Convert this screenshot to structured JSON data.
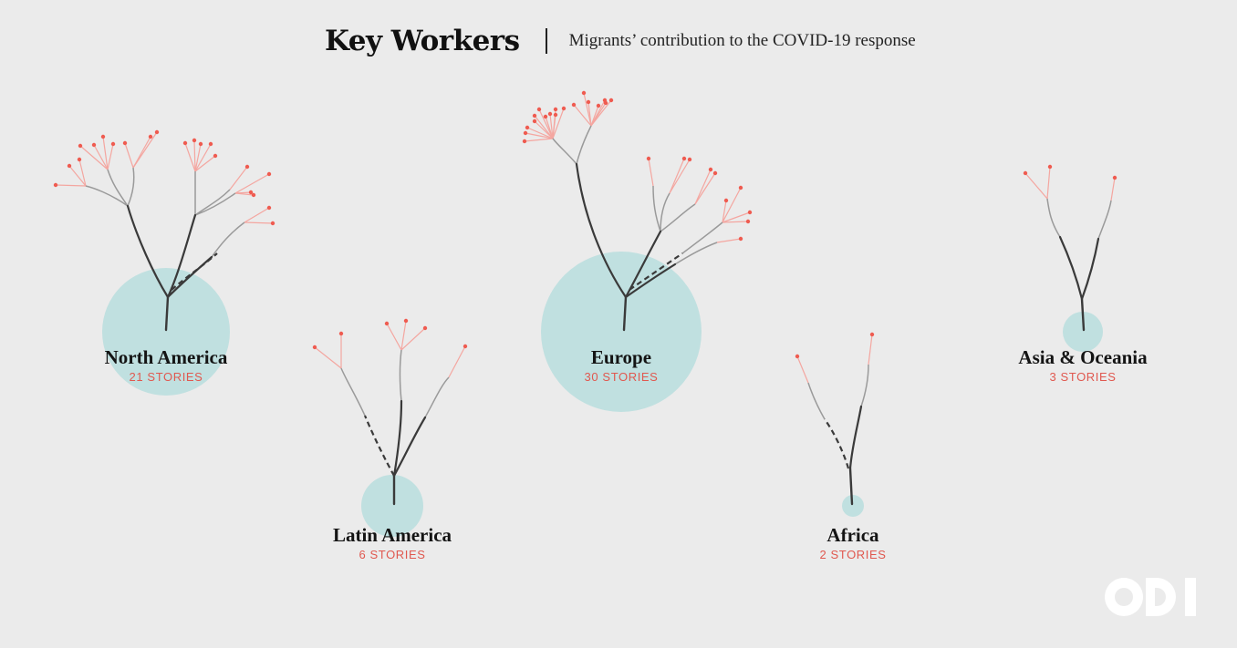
{
  "header": {
    "title": "Key Workers",
    "subtitle": "Migrants’ contribution to the COVID-19 response"
  },
  "regions": [
    {
      "name": "North America",
      "stories_label": "21 STORIES",
      "stories": 21
    },
    {
      "name": "Latin America",
      "stories_label": "6 STORIES",
      "stories": 6
    },
    {
      "name": "Europe",
      "stories_label": "30 STORIES",
      "stories": 30
    },
    {
      "name": "Africa",
      "stories_label": "2 STORIES",
      "stories": 2
    },
    {
      "name": "Asia & Oceania",
      "stories_label": "3 STORIES",
      "stories": 3
    }
  ],
  "logo": {
    "name": "ODI logo",
    "text": "ODI"
  },
  "colors": {
    "background": "#ebebeb",
    "circle": "#c0e0e0",
    "trunk": "#3a3a3a",
    "branch": "#9a9a9a",
    "twig": "#f4a6a0",
    "leaf": "#ef5b50",
    "count_text": "#e0584f"
  }
}
